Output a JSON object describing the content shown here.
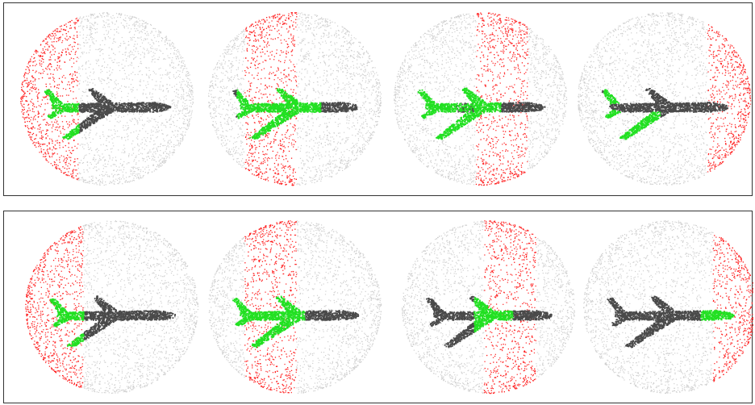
{
  "colors": {
    "background_points": "#cfcfcf",
    "masked_region": "#ff1a1a",
    "airplane_body": "#4a4a4a",
    "highlight": "#22e022",
    "panel_border": "#333333"
  },
  "rows": [
    {
      "name": "top-row",
      "clouds": [
        {
          "mask_slab": "left",
          "highlight_part": "tail"
        },
        {
          "mask_slab": "center-left",
          "highlight_part": "front-body-and-wings"
        },
        {
          "mask_slab": "center-right",
          "highlight_part": "rear-body-and-wings"
        },
        {
          "mask_slab": "right",
          "highlight_part": "tail-and-wing"
        }
      ]
    },
    {
      "name": "bottom-row",
      "clouds": [
        {
          "mask_slab": "left",
          "highlight_part": "tail"
        },
        {
          "mask_slab": "center-left",
          "highlight_part": "tail-and-wings"
        },
        {
          "mask_slab": "center-right",
          "highlight_part": "mid-body"
        },
        {
          "mask_slab": "right",
          "highlight_part": "nose"
        }
      ]
    }
  ]
}
